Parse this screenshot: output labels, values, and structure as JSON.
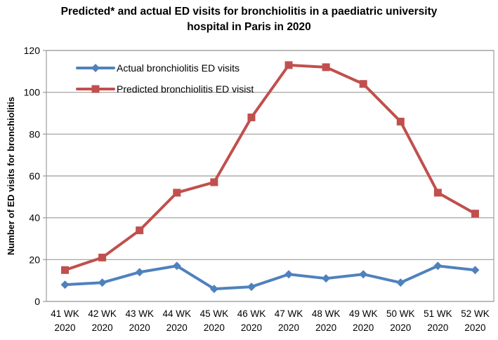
{
  "header": {
    "title_line1": "Predicted* and actual ED visits for bronchiolitis in a paediatric university",
    "title_line2": "hospital in Paris in 2020"
  },
  "chart_data": {
    "type": "line",
    "title": "Predicted* and actual ED visits for bronchiolitis in a paediatric university hospital in Paris in 2020",
    "xlabel": "",
    "ylabel": "Number of ED visits for bronchiolitis",
    "ylim": [
      0,
      120
    ],
    "yticks": [
      0,
      20,
      40,
      60,
      80,
      100,
      120
    ],
    "grid": "horizontal",
    "legend_position": "top-left-inside",
    "categories": [
      "41 WK 2020",
      "42 WK 2020",
      "43 WK 2020",
      "44 WK 2020",
      "45 WK 2020",
      "46 WK 2020",
      "47 WK 2020",
      "48 WK 2020",
      "49 WK 2020",
      "50 WK 2020",
      "51 WK 2020",
      "52 WK 2020"
    ],
    "series": [
      {
        "name": "Actual bronchiolitis ED visits",
        "color": "#4F81BD",
        "marker": "diamond",
        "values": [
          8,
          9,
          14,
          17,
          6,
          7,
          13,
          11,
          13,
          9,
          17,
          15
        ]
      },
      {
        "name": "Predicted bronchiolitis ED visist",
        "color": "#C0504D",
        "marker": "square",
        "values": [
          15,
          21,
          34,
          52,
          57,
          88,
          113,
          112,
          104,
          86,
          52,
          42
        ]
      }
    ],
    "colors": {
      "gridline": "#9c9c9c",
      "border": "#9c9c9c",
      "tick_text": "#000000"
    }
  }
}
